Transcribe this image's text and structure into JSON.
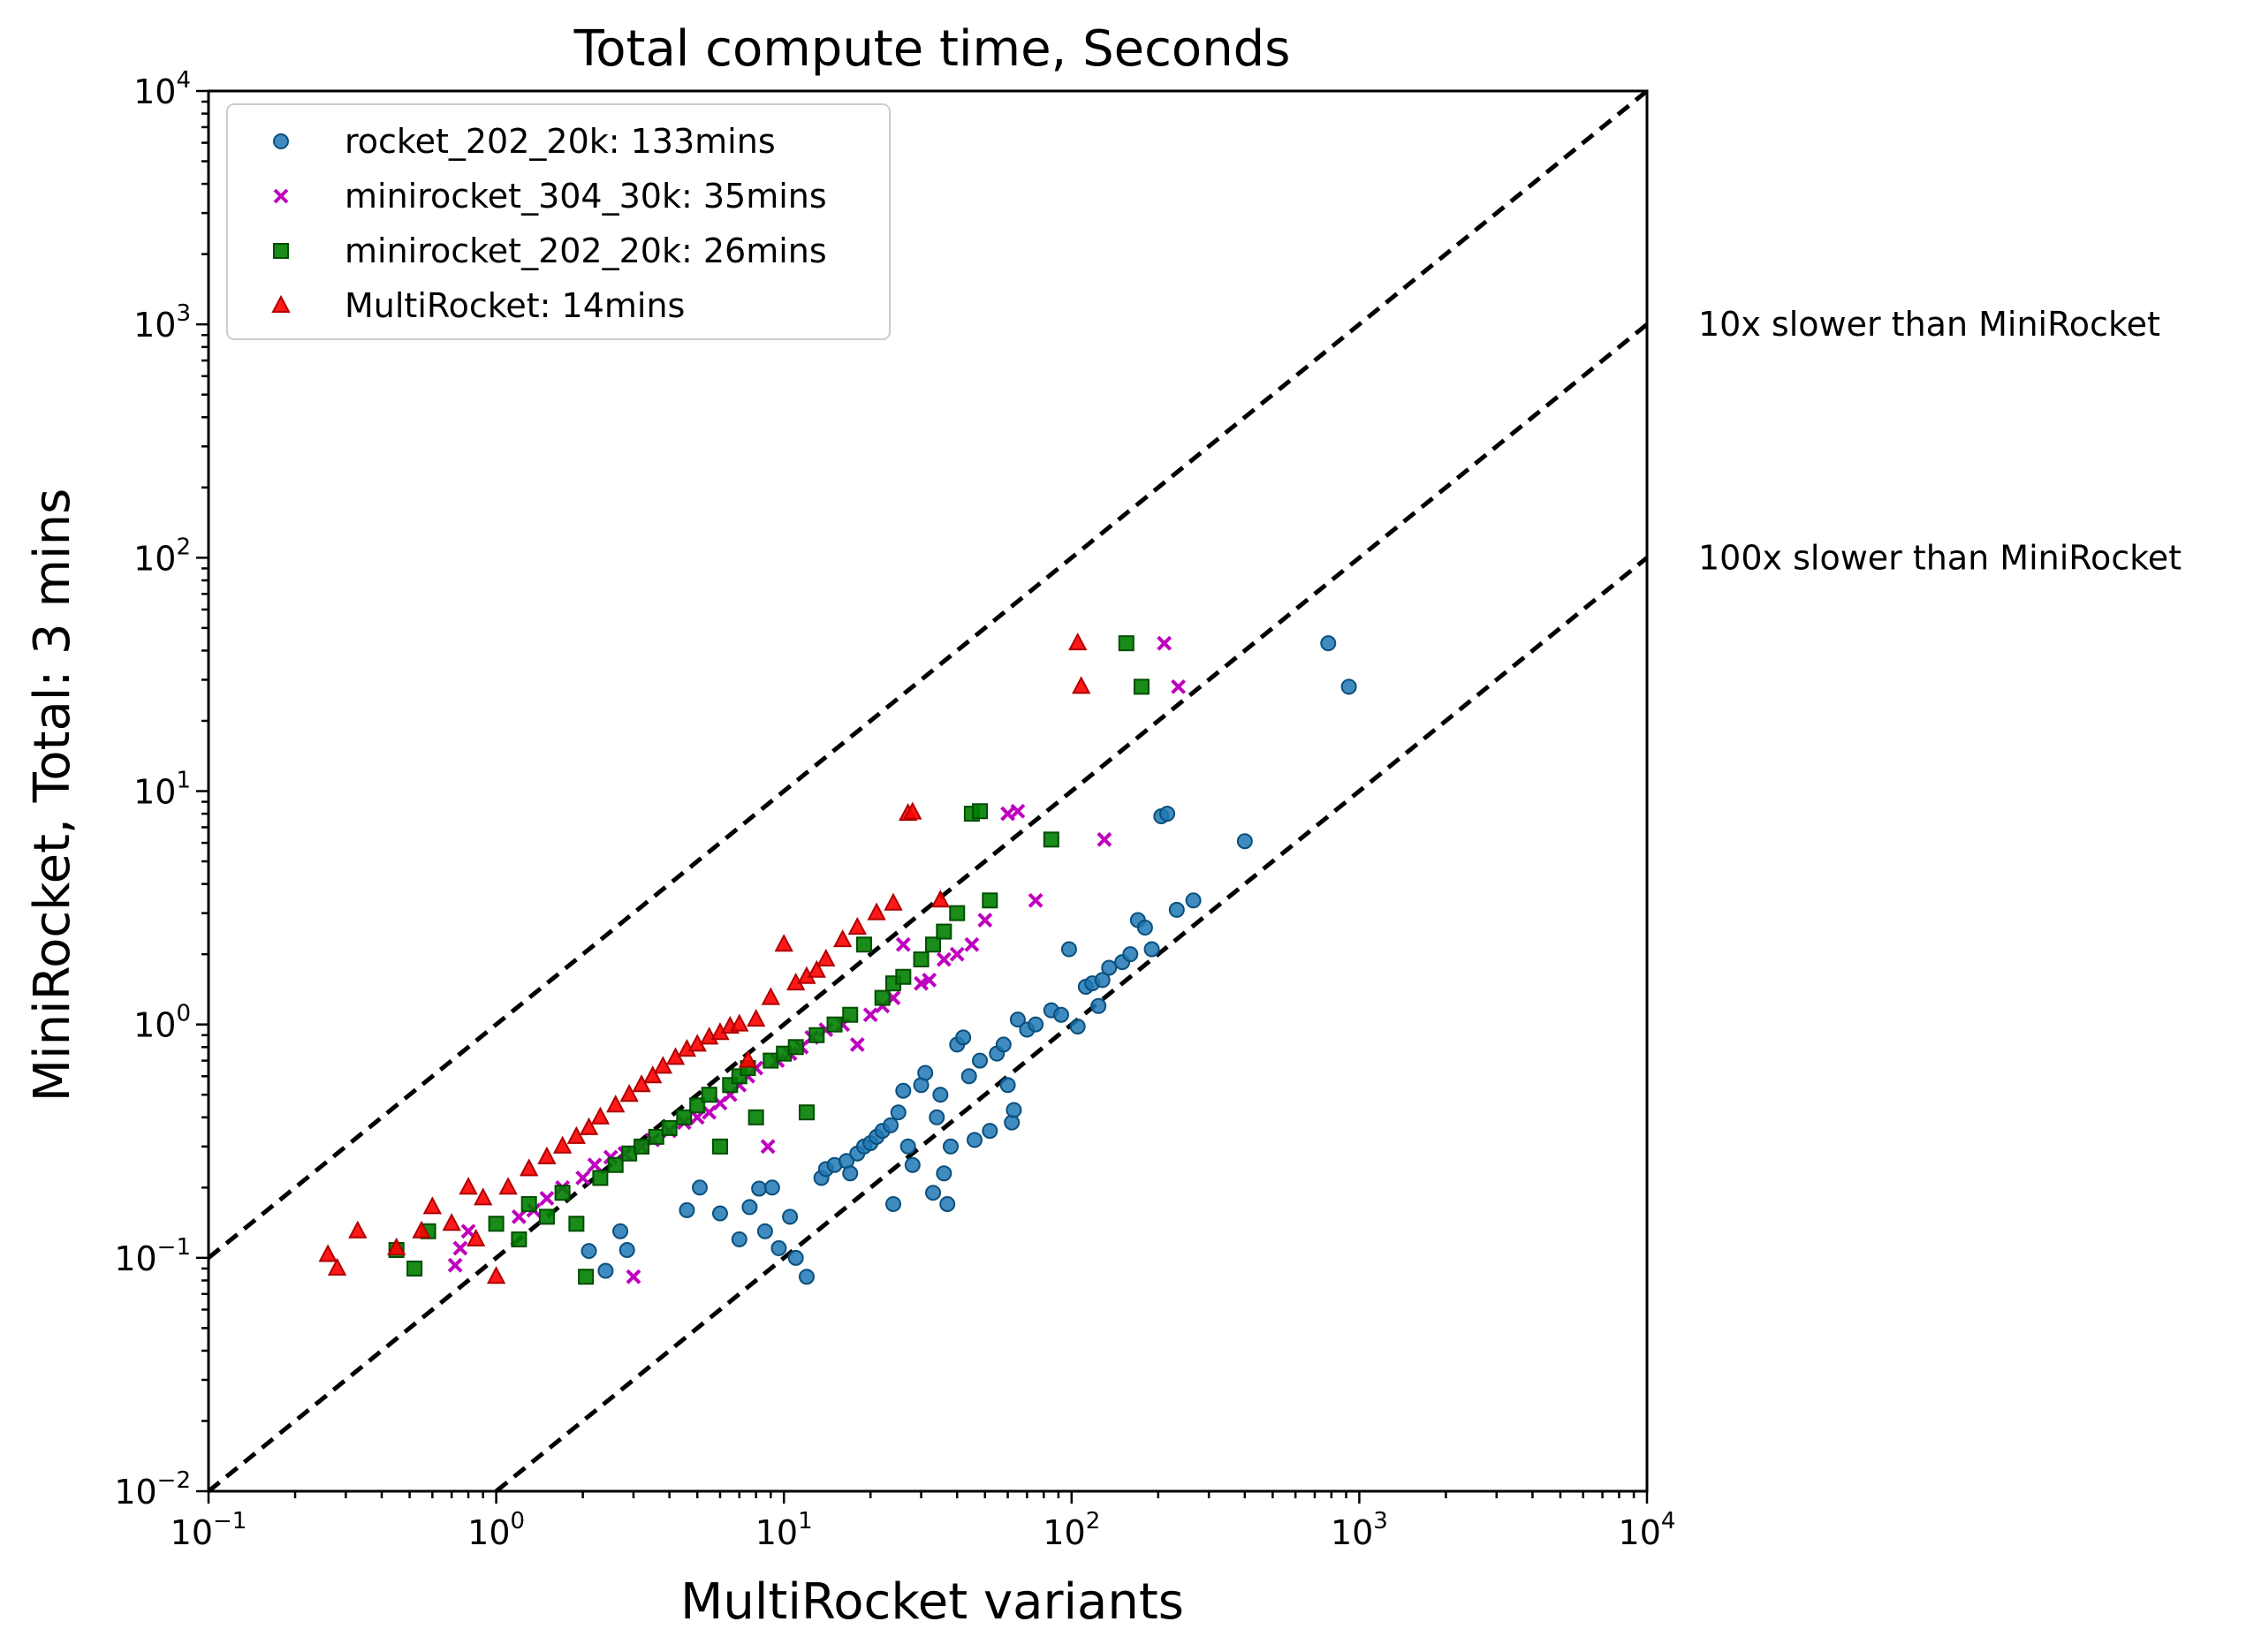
{
  "chart_data": {
    "type": "scatter",
    "title": "Total compute time, Seconds",
    "xlabel": "MultiRocket variants",
    "ylabel": "MiniRocket, Total: 3 mins",
    "xscale": "log",
    "yscale": "log",
    "xlim": [
      0.1,
      10000
    ],
    "ylim": [
      0.01,
      10000
    ],
    "x_ticks": [
      {
        "base": "10",
        "exp": "−1"
      },
      {
        "base": "10",
        "exp": "0"
      },
      {
        "base": "10",
        "exp": "1"
      },
      {
        "base": "10",
        "exp": "2"
      },
      {
        "base": "10",
        "exp": "3"
      },
      {
        "base": "10",
        "exp": "4"
      }
    ],
    "y_ticks": [
      {
        "base": "10",
        "exp": "−2"
      },
      {
        "base": "10",
        "exp": "−1"
      },
      {
        "base": "10",
        "exp": "0"
      },
      {
        "base": "10",
        "exp": "1"
      },
      {
        "base": "10",
        "exp": "2"
      },
      {
        "base": "10",
        "exp": "3"
      },
      {
        "base": "10",
        "exp": "4"
      }
    ],
    "grid": false,
    "legend_position": "top-left",
    "reference_lines": [
      {
        "factor": 1,
        "style": "dashed",
        "color": "#000000",
        "label": ""
      },
      {
        "factor": 10,
        "style": "dashed",
        "color": "#000000",
        "label": "10x slower than MiniRocket"
      },
      {
        "factor": 100,
        "style": "dashed",
        "color": "#000000",
        "label": "100x slower than MiniRocket"
      }
    ],
    "series": [
      {
        "name": "rocket_202_20k: 133mins",
        "marker": "circle",
        "color": "#1f77b4",
        "points": [
          [
            2.1,
            0.107
          ],
          [
            2.4,
            0.088
          ],
          [
            2.7,
            0.13
          ],
          [
            2.85,
            0.108
          ],
          [
            4.6,
            0.16
          ],
          [
            5.1,
            0.2
          ],
          [
            6.0,
            0.155
          ],
          [
            7.0,
            0.12
          ],
          [
            7.6,
            0.165
          ],
          [
            8.2,
            0.198
          ],
          [
            8.6,
            0.13
          ],
          [
            9.1,
            0.2
          ],
          [
            9.6,
            0.11
          ],
          [
            10.5,
            0.15
          ],
          [
            11.0,
            0.1
          ],
          [
            12.0,
            0.083
          ],
          [
            13.5,
            0.22
          ],
          [
            14.0,
            0.24
          ],
          [
            15.0,
            0.25
          ],
          [
            16.5,
            0.26
          ],
          [
            17.0,
            0.23
          ],
          [
            18.0,
            0.28
          ],
          [
            19.0,
            0.3
          ],
          [
            20.0,
            0.31
          ],
          [
            21.0,
            0.33
          ],
          [
            22.0,
            0.35
          ],
          [
            23.5,
            0.37
          ],
          [
            24.0,
            0.17
          ],
          [
            25.0,
            0.42
          ],
          [
            26.0,
            0.52
          ],
          [
            27.0,
            0.3
          ],
          [
            28.0,
            0.25
          ],
          [
            30.0,
            0.55
          ],
          [
            31.0,
            0.62
          ],
          [
            33.0,
            0.19
          ],
          [
            34.0,
            0.4
          ],
          [
            35.0,
            0.5
          ],
          [
            36.0,
            0.23
          ],
          [
            37.0,
            0.17
          ],
          [
            38.0,
            0.3
          ],
          [
            40.0,
            0.82
          ],
          [
            42.0,
            0.88
          ],
          [
            44.0,
            0.6
          ],
          [
            46.0,
            0.32
          ],
          [
            48.0,
            0.7
          ],
          [
            52.0,
            0.35
          ],
          [
            55.0,
            0.75
          ],
          [
            58.0,
            0.82
          ],
          [
            60.0,
            0.55
          ],
          [
            62.0,
            0.38
          ],
          [
            63.0,
            0.43
          ],
          [
            65.0,
            1.05
          ],
          [
            70.0,
            0.95
          ],
          [
            75.0,
            1.0
          ],
          [
            85.0,
            1.15
          ],
          [
            92.0,
            1.1
          ],
          [
            98.0,
            2.1
          ],
          [
            105.0,
            0.98
          ],
          [
            112.0,
            1.45
          ],
          [
            118.0,
            1.5
          ],
          [
            124.0,
            1.2
          ],
          [
            128.0,
            1.55
          ],
          [
            135.0,
            1.75
          ],
          [
            150.0,
            1.85
          ],
          [
            160.0,
            2.0
          ],
          [
            170.0,
            2.8
          ],
          [
            180.0,
            2.6
          ],
          [
            190.0,
            2.1
          ],
          [
            205.0,
            7.8
          ],
          [
            215.0,
            8.0
          ],
          [
            232.0,
            3.1
          ],
          [
            265.0,
            3.4
          ],
          [
            400.0,
            6.1
          ],
          [
            780.0,
            43.0
          ],
          [
            920.0,
            28.0
          ]
        ]
      },
      {
        "name": "minirocket_304_30k: 35mins",
        "marker": "x",
        "color": "#bf00bf",
        "points": [
          [
            0.72,
            0.093
          ],
          [
            0.75,
            0.11
          ],
          [
            0.8,
            0.13
          ],
          [
            1.2,
            0.15
          ],
          [
            1.35,
            0.16
          ],
          [
            1.5,
            0.18
          ],
          [
            1.7,
            0.2
          ],
          [
            2.0,
            0.22
          ],
          [
            2.2,
            0.25
          ],
          [
            2.5,
            0.27
          ],
          [
            2.8,
            0.28
          ],
          [
            3.0,
            0.083
          ],
          [
            3.2,
            0.3
          ],
          [
            3.5,
            0.32
          ],
          [
            4.0,
            0.35
          ],
          [
            4.5,
            0.38
          ],
          [
            5.0,
            0.4
          ],
          [
            5.5,
            0.42
          ],
          [
            6.0,
            0.46
          ],
          [
            6.5,
            0.5
          ],
          [
            7.0,
            0.55
          ],
          [
            7.5,
            0.6
          ],
          [
            8.0,
            0.65
          ],
          [
            8.8,
            0.3
          ],
          [
            9.5,
            0.7
          ],
          [
            10.5,
            0.75
          ],
          [
            11.5,
            0.8
          ],
          [
            12.5,
            0.88
          ],
          [
            14.0,
            0.95
          ],
          [
            16.0,
            1.0
          ],
          [
            18.0,
            0.82
          ],
          [
            20.0,
            1.1
          ],
          [
            22.0,
            1.2
          ],
          [
            24.0,
            1.3
          ],
          [
            26.0,
            2.2
          ],
          [
            30.0,
            1.5
          ],
          [
            32.0,
            1.55
          ],
          [
            36.0,
            1.9
          ],
          [
            40.0,
            2.0
          ],
          [
            45.0,
            2.2
          ],
          [
            50.0,
            2.8
          ],
          [
            60.0,
            8.0
          ],
          [
            65.0,
            8.2
          ],
          [
            75.0,
            3.4
          ],
          [
            130.0,
            6.2
          ],
          [
            210.0,
            43.0
          ],
          [
            235.0,
            28.0
          ]
        ]
      },
      {
        "name": "minirocket_202_20k: 26mins",
        "marker": "square",
        "color": "#008000",
        "points": [
          [
            0.45,
            0.108
          ],
          [
            0.52,
            0.09
          ],
          [
            0.58,
            0.13
          ],
          [
            1.0,
            0.14
          ],
          [
            1.2,
            0.12
          ],
          [
            1.3,
            0.17
          ],
          [
            1.5,
            0.15
          ],
          [
            1.7,
            0.19
          ],
          [
            1.9,
            0.14
          ],
          [
            2.05,
            0.083
          ],
          [
            2.3,
            0.22
          ],
          [
            2.6,
            0.25
          ],
          [
            2.9,
            0.28
          ],
          [
            3.2,
            0.3
          ],
          [
            3.6,
            0.33
          ],
          [
            4.0,
            0.36
          ],
          [
            4.5,
            0.4
          ],
          [
            5.0,
            0.45
          ],
          [
            5.5,
            0.5
          ],
          [
            6.0,
            0.3
          ],
          [
            6.5,
            0.55
          ],
          [
            7.0,
            0.6
          ],
          [
            7.5,
            0.65
          ],
          [
            8.0,
            0.4
          ],
          [
            9.0,
            0.7
          ],
          [
            10.0,
            0.75
          ],
          [
            11.0,
            0.8
          ],
          [
            12.0,
            0.42
          ],
          [
            13.0,
            0.9
          ],
          [
            15.0,
            1.0
          ],
          [
            17.0,
            1.1
          ],
          [
            19.0,
            2.2
          ],
          [
            22.0,
            1.3
          ],
          [
            24.0,
            1.5
          ],
          [
            26.0,
            1.6
          ],
          [
            30.0,
            1.9
          ],
          [
            33.0,
            2.2
          ],
          [
            36.0,
            2.5
          ],
          [
            40.0,
            3.0
          ],
          [
            45.0,
            8.0
          ],
          [
            48.0,
            8.2
          ],
          [
            52.0,
            3.4
          ],
          [
            85.0,
            6.2
          ],
          [
            155.0,
            43.0
          ],
          [
            175.0,
            28.0
          ]
        ]
      },
      {
        "name": "MultiRocket: 14mins",
        "marker": "triangle",
        "color": "#ff0000",
        "points": [
          [
            0.26,
            0.103
          ],
          [
            0.28,
            0.09
          ],
          [
            0.33,
            0.13
          ],
          [
            0.45,
            0.11
          ],
          [
            0.55,
            0.13
          ],
          [
            0.6,
            0.165
          ],
          [
            0.7,
            0.14
          ],
          [
            0.8,
            0.2
          ],
          [
            0.85,
            0.12
          ],
          [
            0.9,
            0.18
          ],
          [
            1.0,
            0.083
          ],
          [
            1.1,
            0.2
          ],
          [
            1.3,
            0.24
          ],
          [
            1.5,
            0.27
          ],
          [
            1.7,
            0.3
          ],
          [
            1.9,
            0.33
          ],
          [
            2.1,
            0.36
          ],
          [
            2.3,
            0.4
          ],
          [
            2.6,
            0.45
          ],
          [
            2.9,
            0.5
          ],
          [
            3.2,
            0.55
          ],
          [
            3.5,
            0.6
          ],
          [
            3.8,
            0.66
          ],
          [
            4.2,
            0.72
          ],
          [
            4.6,
            0.78
          ],
          [
            5.0,
            0.82
          ],
          [
            5.5,
            0.88
          ],
          [
            6.0,
            0.92
          ],
          [
            6.5,
            0.98
          ],
          [
            7.0,
            1.0
          ],
          [
            7.5,
            0.7
          ],
          [
            8.0,
            1.05
          ],
          [
            9.0,
            1.3
          ],
          [
            10.0,
            2.2
          ],
          [
            11.0,
            1.5
          ],
          [
            12.0,
            1.6
          ],
          [
            13.0,
            1.7
          ],
          [
            14.0,
            1.9
          ],
          [
            16.0,
            2.3
          ],
          [
            18.0,
            2.6
          ],
          [
            21.0,
            3.0
          ],
          [
            24.0,
            3.3
          ],
          [
            27.0,
            8.0
          ],
          [
            28.0,
            8.1
          ],
          [
            35.0,
            3.4
          ],
          [
            105.0,
            43.0
          ],
          [
            108.0,
            28.0
          ]
        ]
      }
    ]
  }
}
